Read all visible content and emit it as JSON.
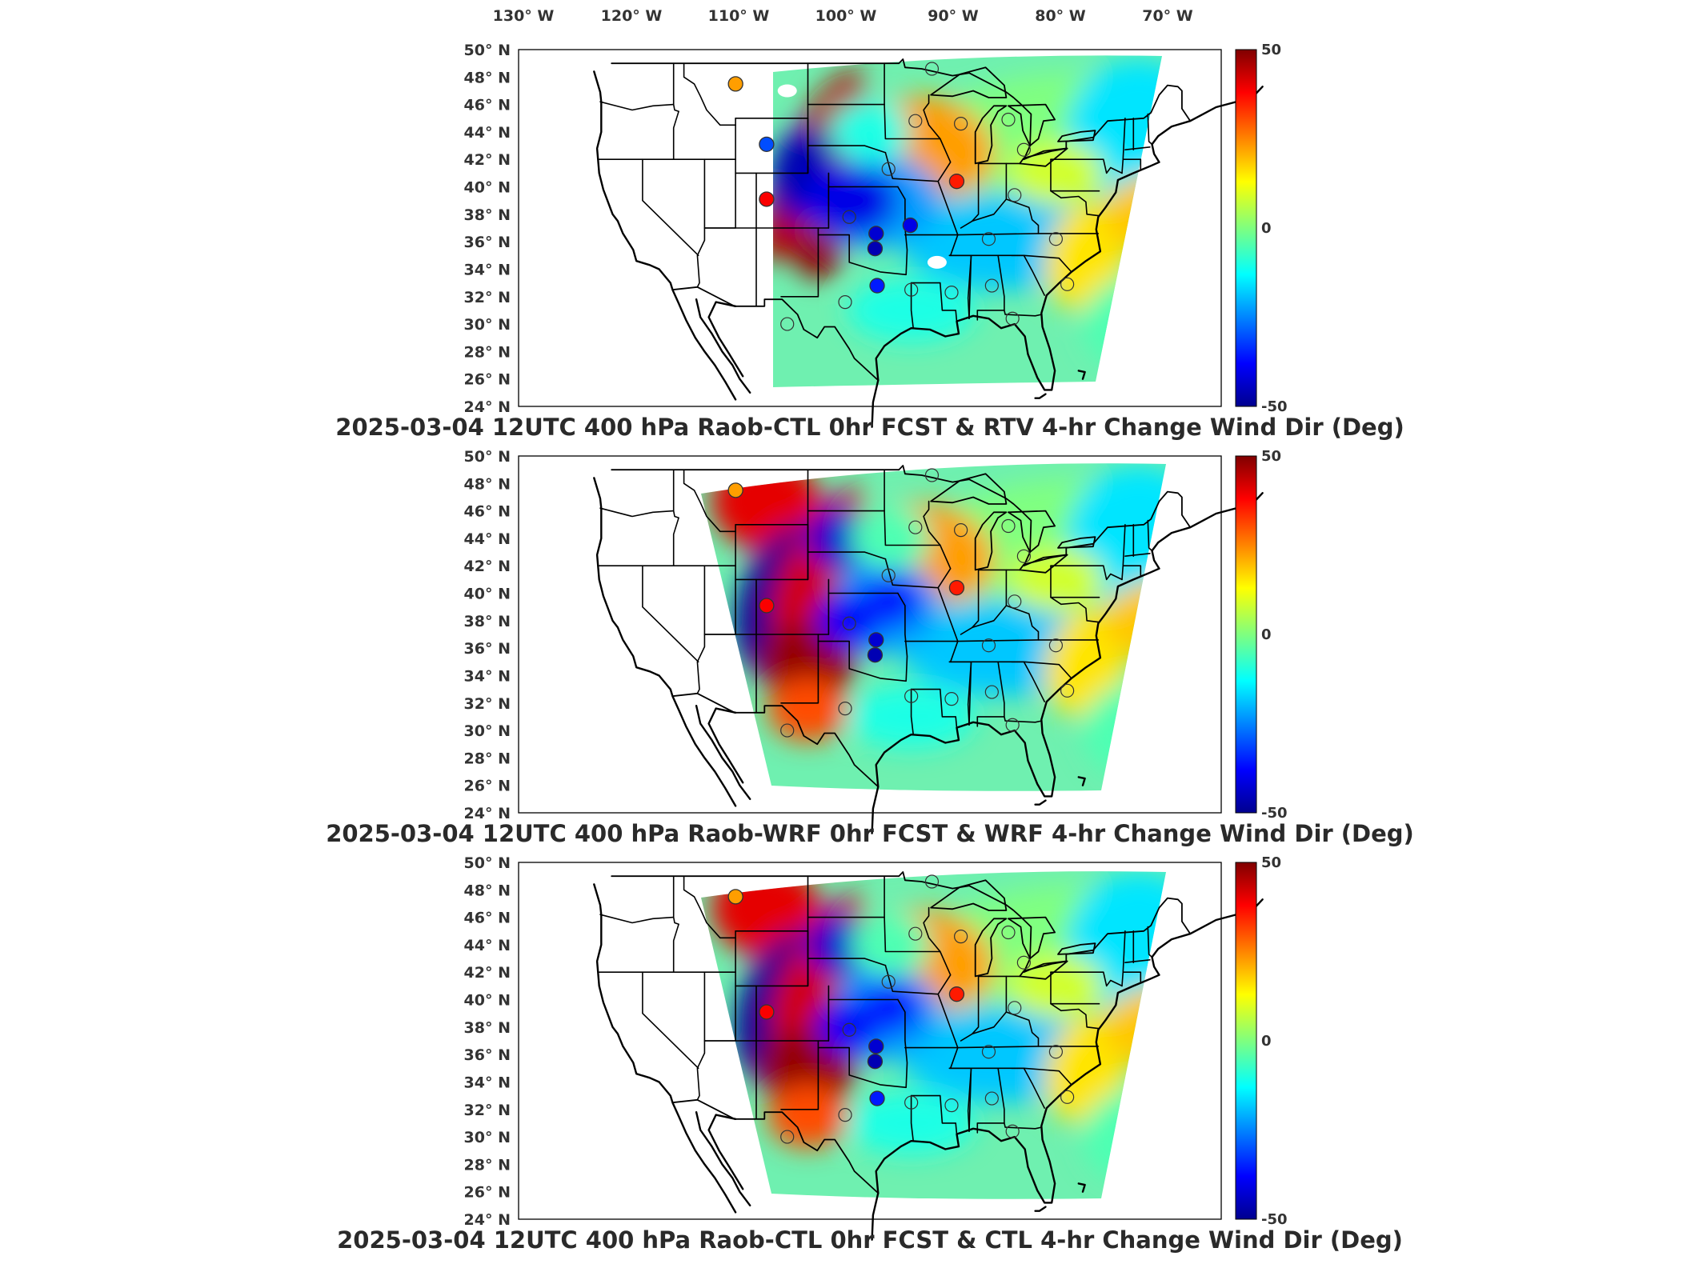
{
  "figure": {
    "lon_ticks": [
      "130° W",
      "120° W",
      "110° W",
      "100° W",
      "90° W",
      "80° W",
      "70° W"
    ],
    "lat_ticks": [
      "50° N",
      "48° N",
      "46° N",
      "44° N",
      "42° N",
      "40° N",
      "38° N",
      "36° N",
      "34° N",
      "32° N",
      "30° N",
      "28° N",
      "26° N",
      "24° N"
    ],
    "colorbar": {
      "max": "50",
      "mid": "0",
      "min": "-50",
      "colormap": "jet"
    },
    "panels": [
      {
        "title": "2025-03-04 12UTC 400 hPa Raob-CTL 0hr FCST & RTV 4-hr Change Wind Dir (Deg)",
        "stations": [
          {
            "lon": -111.0,
            "lat": 47.5,
            "value": 22
          },
          {
            "lon": -108.0,
            "lat": 43.1,
            "value": -30
          },
          {
            "lon": -108.0,
            "lat": 39.1,
            "value": 38
          },
          {
            "lon": -89.6,
            "lat": 40.4,
            "value": 35
          },
          {
            "lon": -97.5,
            "lat": 35.5,
            "value": -45
          },
          {
            "lon": -97.4,
            "lat": 36.6,
            "value": -42
          },
          {
            "lon": -94.1,
            "lat": 37.2,
            "value": -40
          },
          {
            "lon": -97.3,
            "lat": 32.8,
            "value": -35
          }
        ]
      },
      {
        "title": "2025-03-04 12UTC 400 hPa Raob-WRF 0hr FCST & WRF 4-hr Change Wind Dir (Deg)",
        "stations": [
          {
            "lon": -111.0,
            "lat": 47.5,
            "value": 22
          },
          {
            "lon": -108.0,
            "lat": 39.1,
            "value": 38
          },
          {
            "lon": -89.6,
            "lat": 40.4,
            "value": 35
          },
          {
            "lon": -97.5,
            "lat": 35.5,
            "value": -45
          },
          {
            "lon": -97.4,
            "lat": 36.6,
            "value": -42
          }
        ]
      },
      {
        "title": "2025-03-04 12UTC 400 hPa Raob-CTL 0hr FCST & CTL 4-hr Change Wind Dir (Deg)",
        "stations": [
          {
            "lon": -111.0,
            "lat": 47.5,
            "value": 22
          },
          {
            "lon": -108.0,
            "lat": 39.1,
            "value": 38
          },
          {
            "lon": -89.6,
            "lat": 40.4,
            "value": 35
          },
          {
            "lon": -97.5,
            "lat": 35.5,
            "value": -45
          },
          {
            "lon": -97.4,
            "lat": 36.6,
            "value": -42
          },
          {
            "lon": -97.3,
            "lat": 32.8,
            "value": -35
          }
        ]
      }
    ],
    "open_stations": [
      [
        -93.6,
        44.8
      ],
      [
        -92.0,
        48.6
      ],
      [
        -89.2,
        44.6
      ],
      [
        -84.6,
        44.9
      ],
      [
        -83.1,
        42.7
      ],
      [
        -84.0,
        39.4
      ],
      [
        -86.5,
        36.2
      ],
      [
        -80.0,
        36.2
      ],
      [
        -78.9,
        32.9
      ],
      [
        -84.2,
        30.4
      ],
      [
        -86.2,
        32.8
      ],
      [
        -90.1,
        32.3
      ],
      [
        -94.0,
        32.5
      ],
      [
        -100.0,
        37.8
      ],
      [
        -100.4,
        31.6
      ],
      [
        -96.2,
        41.3
      ],
      [
        -106.0,
        30.0
      ]
    ]
  }
}
